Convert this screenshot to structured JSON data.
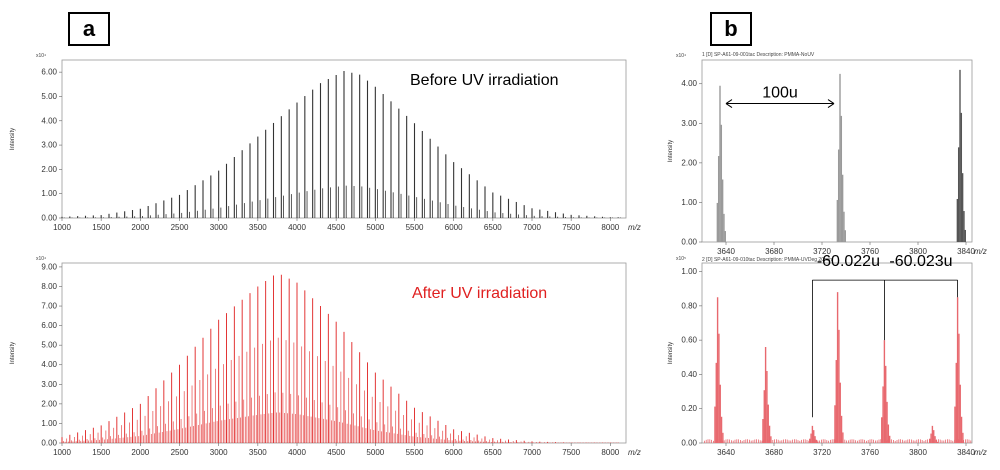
{
  "panels": {
    "a_label": "a",
    "b_label": "b"
  },
  "colors": {
    "before": "#333333",
    "after": "#e02020",
    "after_zoom": "#e8686e",
    "before_zoom": "#555555",
    "before_zoom_light": "#9a9a9a"
  },
  "chart_data": [
    {
      "id": "a-top",
      "type": "bar",
      "title": "Before UV irradiation",
      "xlabel": "m/z",
      "ylabel": "Intensity",
      "y_exponent": "x10⁴",
      "xlim": [
        1000,
        8200
      ],
      "ylim": [
        0,
        6.5
      ],
      "xticks": [
        "1000",
        "1500",
        "2000",
        "2500",
        "3000",
        "3500",
        "4000",
        "4500",
        "5000",
        "5500",
        "6000",
        "6500",
        "7000",
        "7500",
        "8000"
      ],
      "yticks": [
        "0.00",
        "1.00",
        "2.00",
        "3.00",
        "4.00",
        "5.00",
        "6.00"
      ],
      "peak_spacing": 100,
      "envelope_peaks": [
        [
          1000,
          0.05
        ],
        [
          1500,
          0.12
        ],
        [
          2000,
          0.38
        ],
        [
          2500,
          0.95
        ],
        [
          3000,
          1.95
        ],
        [
          3500,
          3.35
        ],
        [
          4000,
          4.75
        ],
        [
          4300,
          5.55
        ],
        [
          4600,
          6.05
        ],
        [
          4800,
          5.9
        ],
        [
          5000,
          5.4
        ],
        [
          5500,
          3.9
        ],
        [
          6000,
          2.3
        ],
        [
          6500,
          1.05
        ],
        [
          7000,
          0.4
        ],
        [
          7500,
          0.13
        ],
        [
          8000,
          0.03
        ]
      ]
    },
    {
      "id": "a-bottom",
      "type": "bar",
      "title": "After UV irradiation",
      "xlabel": "m/z",
      "ylabel": "Intensity",
      "y_exponent": "x10⁴",
      "xlim": [
        1000,
        8200
      ],
      "ylim": [
        0,
        9.2
      ],
      "xticks": [
        "1000",
        "1500",
        "2000",
        "2500",
        "3000",
        "3500",
        "4000",
        "4500",
        "5000",
        "5500",
        "6000",
        "6500",
        "7000",
        "7500",
        "8000"
      ],
      "yticks": [
        "0.00",
        "1.00",
        "2.00",
        "3.00",
        "4.00",
        "5.00",
        "6.00",
        "7.00",
        "8.00",
        "9.00"
      ],
      "peak_spacing": 20,
      "envelope_peaks": [
        [
          1000,
          0.3
        ],
        [
          1500,
          0.9
        ],
        [
          2000,
          2.0
        ],
        [
          2500,
          4.0
        ],
        [
          3000,
          6.3
        ],
        [
          3500,
          8.0
        ],
        [
          3750,
          8.7
        ],
        [
          4000,
          8.2
        ],
        [
          4500,
          6.2
        ],
        [
          5000,
          3.6
        ],
        [
          5500,
          1.8
        ],
        [
          6000,
          0.7
        ],
        [
          6500,
          0.25
        ],
        [
          7000,
          0.08
        ],
        [
          7500,
          0.02
        ],
        [
          8000,
          0.0
        ]
      ]
    },
    {
      "id": "b-top",
      "type": "bar",
      "header": "1 [D] SP-A61-09-001tac   Description: PMMA-NoUV",
      "xlabel": "m/z",
      "ylabel": "Intensity",
      "y_exponent": "x10⁴",
      "xlim": [
        3620,
        3845
      ],
      "ylim": [
        0,
        4.6
      ],
      "xticks": [
        "3640",
        "3680",
        "3720",
        "3760",
        "3800",
        "3840"
      ],
      "yticks": [
        "0.00",
        "1.00",
        "2.00",
        "3.00",
        "4.00"
      ],
      "peaks": [
        [
          3635,
          3.95
        ],
        [
          3735,
          4.25
        ],
        [
          3835,
          4.35
        ]
      ],
      "annotation": {
        "text": "100u",
        "from": 3635,
        "to": 3735
      }
    },
    {
      "id": "b-bottom",
      "type": "bar",
      "header": "2 [D] SP-A61-09-010tac   Description: PMMA-UVDeg 20min",
      "xlabel": "m/z",
      "ylabel": "Intensity",
      "y_exponent": "x10⁵",
      "xlim": [
        3620,
        3845
      ],
      "ylim": [
        0,
        1.05
      ],
      "xticks": [
        "3640",
        "3680",
        "3720",
        "3760",
        "3800",
        "3840"
      ],
      "yticks": [
        "0.00",
        "0.20",
        "0.40",
        "0.60",
        "0.80",
        "1.00"
      ],
      "peaks": [
        [
          3633,
          0.85
        ],
        [
          3673,
          0.56
        ],
        [
          3712,
          0.1
        ],
        [
          3733,
          0.88
        ],
        [
          3772,
          0.6
        ],
        [
          3812,
          0.1
        ],
        [
          3833,
          0.85
        ]
      ],
      "annotations": [
        {
          "text": "-60.022u",
          "from": 3712,
          "to": 3772
        },
        {
          "text": "-60.023u",
          "from": 3772,
          "to": 3833
        }
      ]
    }
  ]
}
